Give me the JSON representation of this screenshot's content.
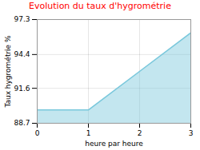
{
  "chart_data": {
    "type": "area",
    "title": "Evolution du taux d'hygrométrie",
    "xlabel": "heure par heure",
    "ylabel": "Taux hygrométrie %",
    "x": [
      0,
      1,
      2,
      3
    ],
    "values": [
      89.8,
      89.8,
      93.0,
      96.2
    ],
    "color": "#7ac8dc",
    "xlim": [
      0,
      3
    ],
    "ylim": [
      88.7,
      97.3
    ],
    "xticks": [
      0,
      1,
      2,
      3
    ],
    "yticks": [
      88.7,
      91.6,
      94.4,
      97.3
    ],
    "grid": true
  }
}
